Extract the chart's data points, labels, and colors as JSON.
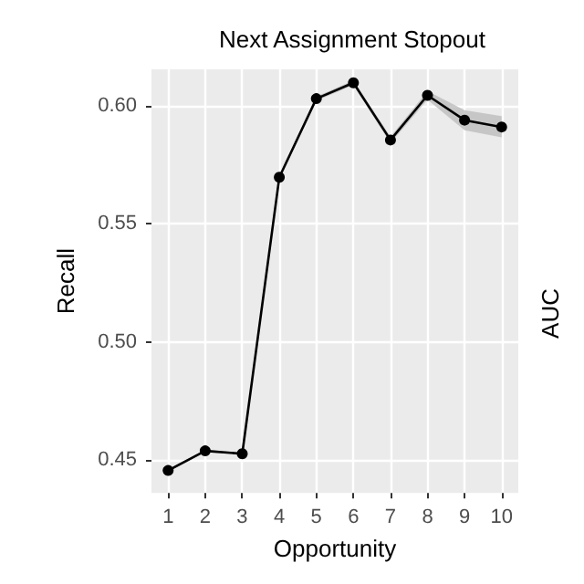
{
  "chart_data": {
    "type": "line",
    "title": "Next Assignment Stopout",
    "xlabel": "Opportunity",
    "ylabel": "Recall",
    "annotations": [
      "AUC"
    ],
    "x": [
      1,
      2,
      3,
      4,
      5,
      6,
      7,
      8,
      9,
      10
    ],
    "series": [
      {
        "color": "#000000",
        "values": [
          0.4455,
          0.4538,
          0.4526,
          0.5696,
          0.6029,
          0.6096,
          0.5854,
          0.6043,
          0.5938,
          0.5909
        ],
        "lower": [
          0.445,
          0.4533,
          0.4521,
          0.569,
          0.602,
          0.6086,
          0.584,
          0.6025,
          0.5895,
          0.5865
        ],
        "upper": [
          0.446,
          0.4543,
          0.4531,
          0.5702,
          0.6038,
          0.6106,
          0.5868,
          0.6061,
          0.598,
          0.5955
        ]
      }
    ],
    "xlim": [
      0.55,
      10.45
    ],
    "xticks": [
      1,
      2,
      3,
      4,
      5,
      6,
      7,
      8,
      9,
      10
    ],
    "ylim": [
      0.436,
      0.6153
    ],
    "yticks": [
      0.45,
      {
        "value": 0.5,
        "label": "0.50"
      },
      0.55,
      {
        "value": 0.6,
        "label": "0.60"
      }
    ],
    "grid": true,
    "marker": "circle",
    "line_style": "solid"
  }
}
